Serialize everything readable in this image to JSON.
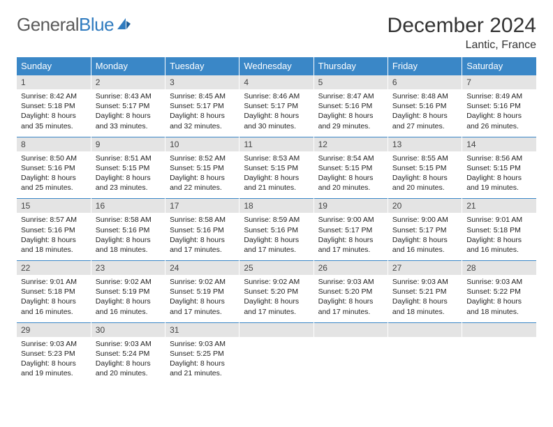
{
  "brand": {
    "part1": "General",
    "part2": "Blue"
  },
  "header": {
    "title": "December 2024",
    "location": "Lantic, France"
  },
  "colors": {
    "header_bg": "#3a87c7",
    "daynum_bg": "#e4e4e4",
    "rule": "#3a87c7"
  },
  "weekdays": [
    "Sunday",
    "Monday",
    "Tuesday",
    "Wednesday",
    "Thursday",
    "Friday",
    "Saturday"
  ],
  "weeks": [
    [
      {
        "n": "1",
        "sr": "Sunrise: 8:42 AM",
        "ss": "Sunset: 5:18 PM",
        "d1": "Daylight: 8 hours",
        "d2": "and 35 minutes."
      },
      {
        "n": "2",
        "sr": "Sunrise: 8:43 AM",
        "ss": "Sunset: 5:17 PM",
        "d1": "Daylight: 8 hours",
        "d2": "and 33 minutes."
      },
      {
        "n": "3",
        "sr": "Sunrise: 8:45 AM",
        "ss": "Sunset: 5:17 PM",
        "d1": "Daylight: 8 hours",
        "d2": "and 32 minutes."
      },
      {
        "n": "4",
        "sr": "Sunrise: 8:46 AM",
        "ss": "Sunset: 5:17 PM",
        "d1": "Daylight: 8 hours",
        "d2": "and 30 minutes."
      },
      {
        "n": "5",
        "sr": "Sunrise: 8:47 AM",
        "ss": "Sunset: 5:16 PM",
        "d1": "Daylight: 8 hours",
        "d2": "and 29 minutes."
      },
      {
        "n": "6",
        "sr": "Sunrise: 8:48 AM",
        "ss": "Sunset: 5:16 PM",
        "d1": "Daylight: 8 hours",
        "d2": "and 27 minutes."
      },
      {
        "n": "7",
        "sr": "Sunrise: 8:49 AM",
        "ss": "Sunset: 5:16 PM",
        "d1": "Daylight: 8 hours",
        "d2": "and 26 minutes."
      }
    ],
    [
      {
        "n": "8",
        "sr": "Sunrise: 8:50 AM",
        "ss": "Sunset: 5:16 PM",
        "d1": "Daylight: 8 hours",
        "d2": "and 25 minutes."
      },
      {
        "n": "9",
        "sr": "Sunrise: 8:51 AM",
        "ss": "Sunset: 5:15 PM",
        "d1": "Daylight: 8 hours",
        "d2": "and 23 minutes."
      },
      {
        "n": "10",
        "sr": "Sunrise: 8:52 AM",
        "ss": "Sunset: 5:15 PM",
        "d1": "Daylight: 8 hours",
        "d2": "and 22 minutes."
      },
      {
        "n": "11",
        "sr": "Sunrise: 8:53 AM",
        "ss": "Sunset: 5:15 PM",
        "d1": "Daylight: 8 hours",
        "d2": "and 21 minutes."
      },
      {
        "n": "12",
        "sr": "Sunrise: 8:54 AM",
        "ss": "Sunset: 5:15 PM",
        "d1": "Daylight: 8 hours",
        "d2": "and 20 minutes."
      },
      {
        "n": "13",
        "sr": "Sunrise: 8:55 AM",
        "ss": "Sunset: 5:15 PM",
        "d1": "Daylight: 8 hours",
        "d2": "and 20 minutes."
      },
      {
        "n": "14",
        "sr": "Sunrise: 8:56 AM",
        "ss": "Sunset: 5:15 PM",
        "d1": "Daylight: 8 hours",
        "d2": "and 19 minutes."
      }
    ],
    [
      {
        "n": "15",
        "sr": "Sunrise: 8:57 AM",
        "ss": "Sunset: 5:16 PM",
        "d1": "Daylight: 8 hours",
        "d2": "and 18 minutes."
      },
      {
        "n": "16",
        "sr": "Sunrise: 8:58 AM",
        "ss": "Sunset: 5:16 PM",
        "d1": "Daylight: 8 hours",
        "d2": "and 18 minutes."
      },
      {
        "n": "17",
        "sr": "Sunrise: 8:58 AM",
        "ss": "Sunset: 5:16 PM",
        "d1": "Daylight: 8 hours",
        "d2": "and 17 minutes."
      },
      {
        "n": "18",
        "sr": "Sunrise: 8:59 AM",
        "ss": "Sunset: 5:16 PM",
        "d1": "Daylight: 8 hours",
        "d2": "and 17 minutes."
      },
      {
        "n": "19",
        "sr": "Sunrise: 9:00 AM",
        "ss": "Sunset: 5:17 PM",
        "d1": "Daylight: 8 hours",
        "d2": "and 17 minutes."
      },
      {
        "n": "20",
        "sr": "Sunrise: 9:00 AM",
        "ss": "Sunset: 5:17 PM",
        "d1": "Daylight: 8 hours",
        "d2": "and 16 minutes."
      },
      {
        "n": "21",
        "sr": "Sunrise: 9:01 AM",
        "ss": "Sunset: 5:18 PM",
        "d1": "Daylight: 8 hours",
        "d2": "and 16 minutes."
      }
    ],
    [
      {
        "n": "22",
        "sr": "Sunrise: 9:01 AM",
        "ss": "Sunset: 5:18 PM",
        "d1": "Daylight: 8 hours",
        "d2": "and 16 minutes."
      },
      {
        "n": "23",
        "sr": "Sunrise: 9:02 AM",
        "ss": "Sunset: 5:19 PM",
        "d1": "Daylight: 8 hours",
        "d2": "and 16 minutes."
      },
      {
        "n": "24",
        "sr": "Sunrise: 9:02 AM",
        "ss": "Sunset: 5:19 PM",
        "d1": "Daylight: 8 hours",
        "d2": "and 17 minutes."
      },
      {
        "n": "25",
        "sr": "Sunrise: 9:02 AM",
        "ss": "Sunset: 5:20 PM",
        "d1": "Daylight: 8 hours",
        "d2": "and 17 minutes."
      },
      {
        "n": "26",
        "sr": "Sunrise: 9:03 AM",
        "ss": "Sunset: 5:20 PM",
        "d1": "Daylight: 8 hours",
        "d2": "and 17 minutes."
      },
      {
        "n": "27",
        "sr": "Sunrise: 9:03 AM",
        "ss": "Sunset: 5:21 PM",
        "d1": "Daylight: 8 hours",
        "d2": "and 18 minutes."
      },
      {
        "n": "28",
        "sr": "Sunrise: 9:03 AM",
        "ss": "Sunset: 5:22 PM",
        "d1": "Daylight: 8 hours",
        "d2": "and 18 minutes."
      }
    ],
    [
      {
        "n": "29",
        "sr": "Sunrise: 9:03 AM",
        "ss": "Sunset: 5:23 PM",
        "d1": "Daylight: 8 hours",
        "d2": "and 19 minutes."
      },
      {
        "n": "30",
        "sr": "Sunrise: 9:03 AM",
        "ss": "Sunset: 5:24 PM",
        "d1": "Daylight: 8 hours",
        "d2": "and 20 minutes."
      },
      {
        "n": "31",
        "sr": "Sunrise: 9:03 AM",
        "ss": "Sunset: 5:25 PM",
        "d1": "Daylight: 8 hours",
        "d2": "and 21 minutes."
      },
      {
        "empty": true
      },
      {
        "empty": true
      },
      {
        "empty": true
      },
      {
        "empty": true
      }
    ]
  ]
}
